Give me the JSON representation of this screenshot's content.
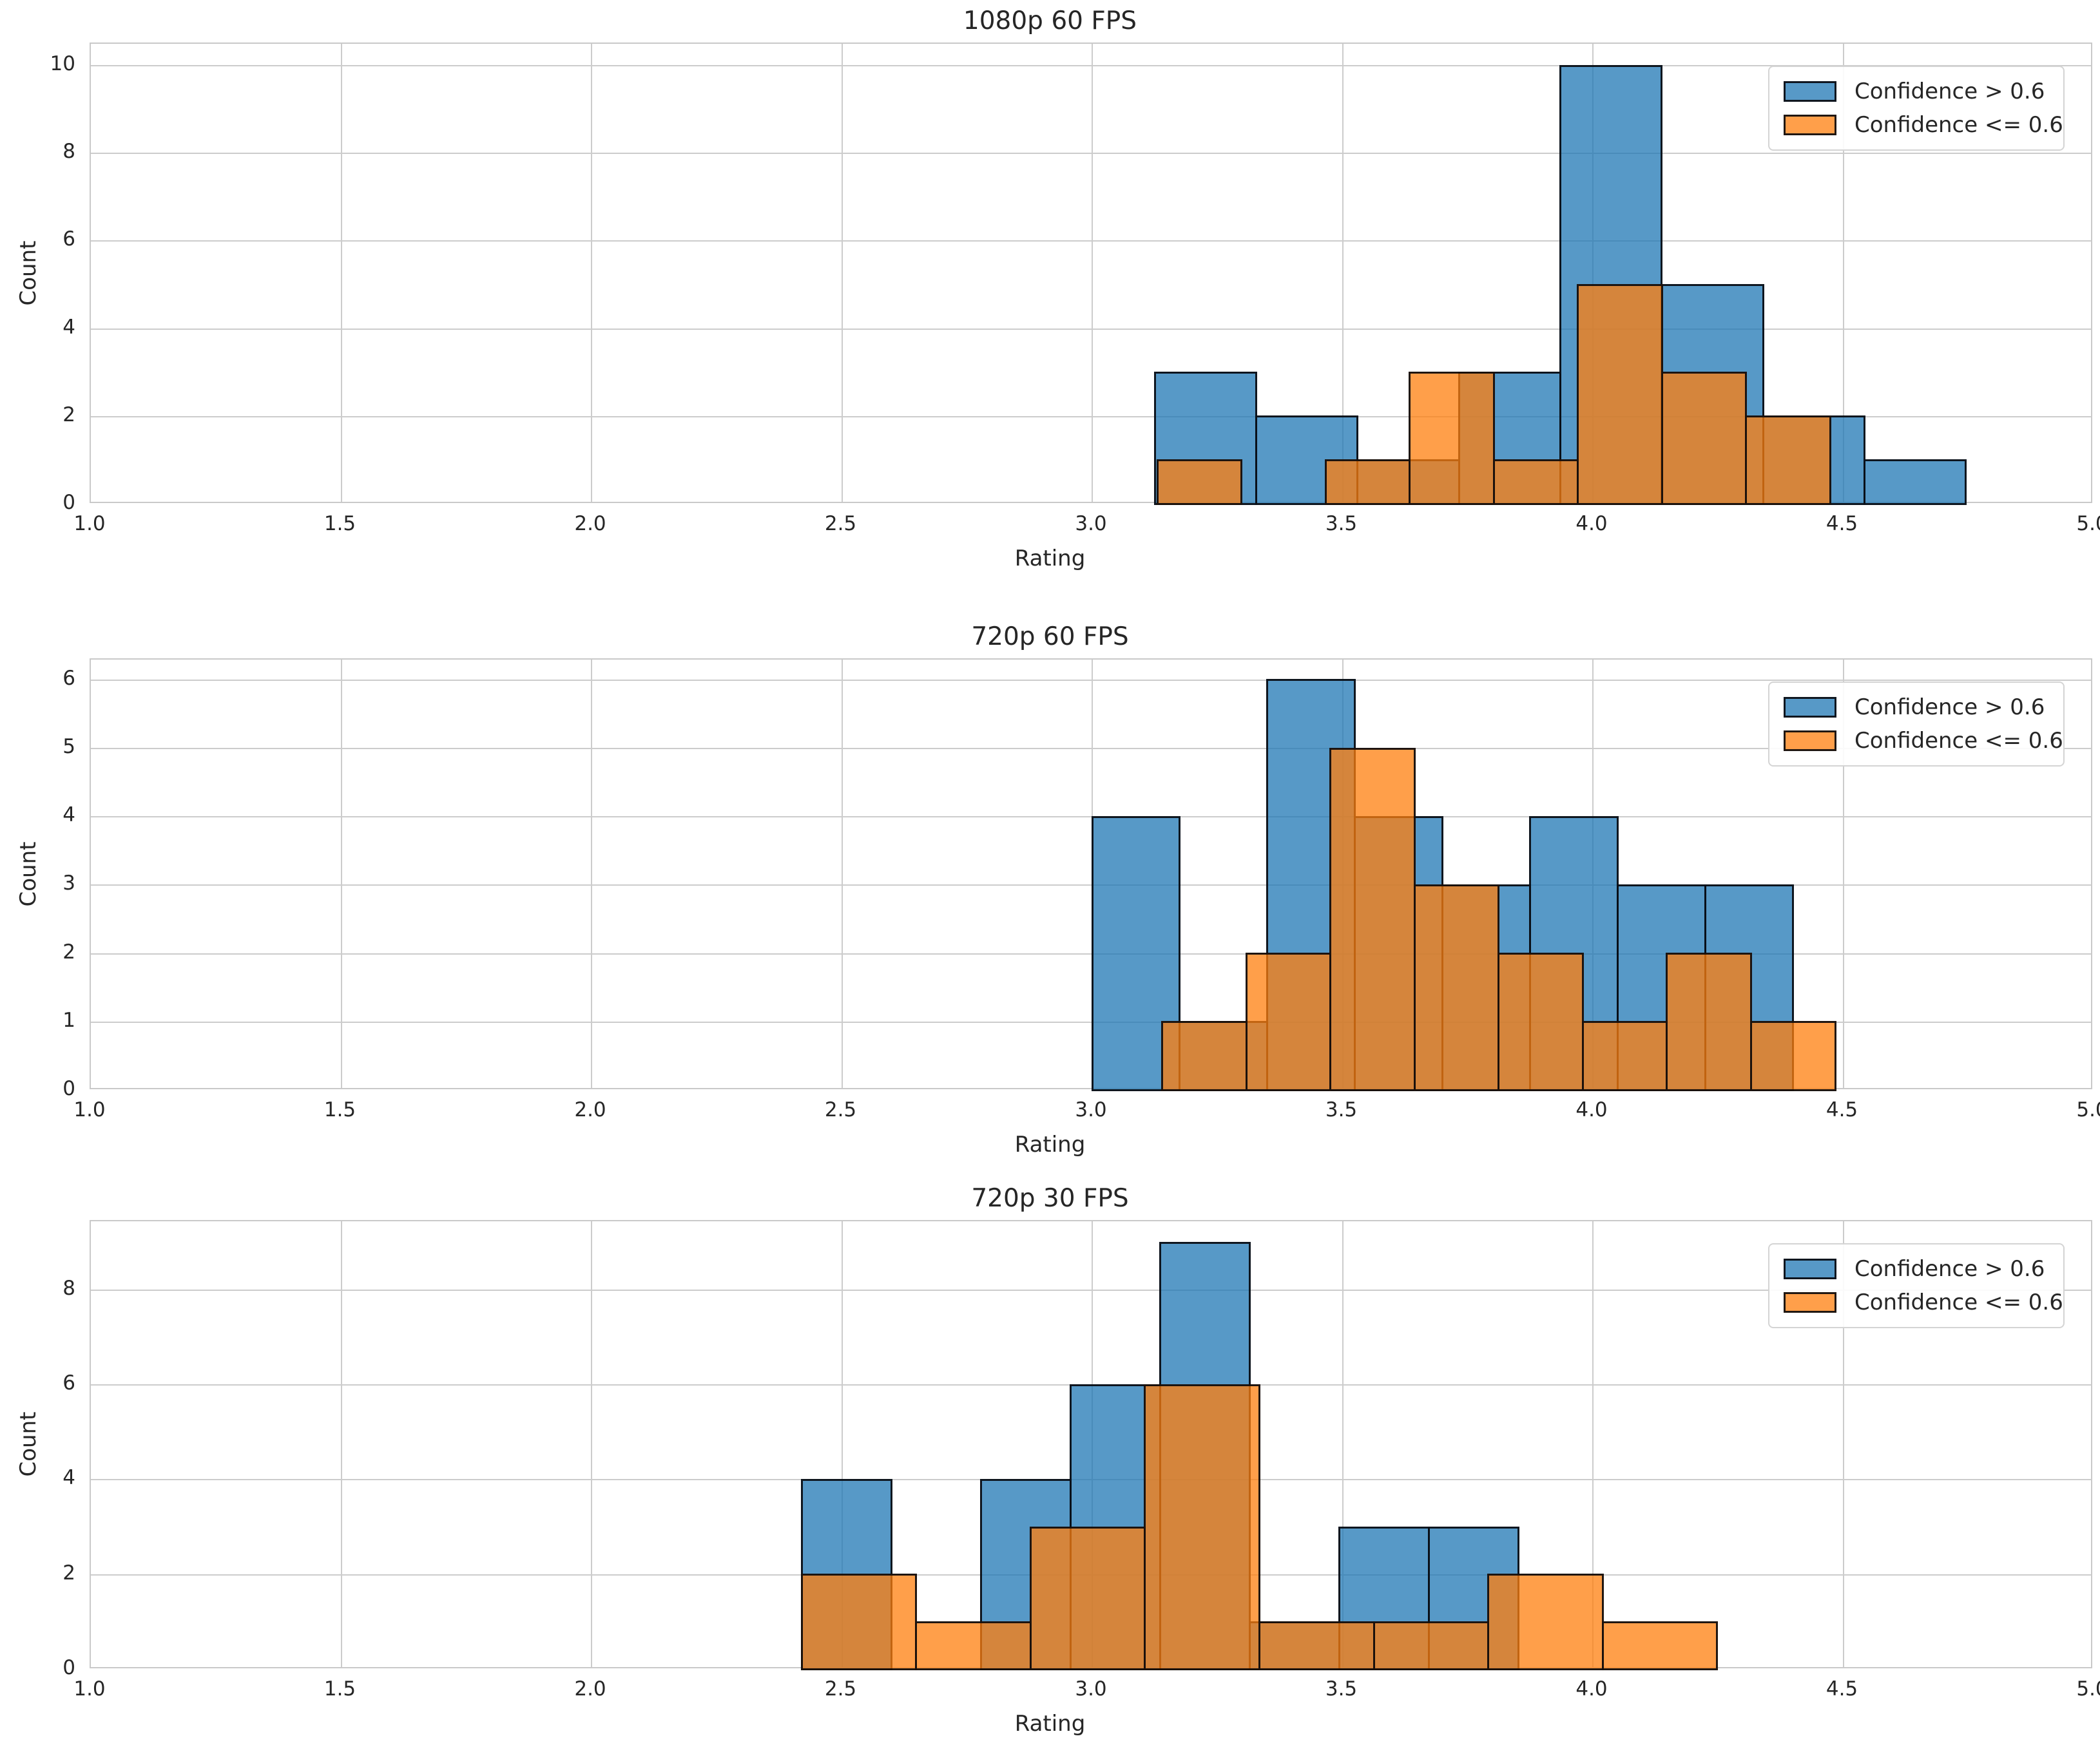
{
  "figure": {
    "background": "#ffffff",
    "text_color": "#262626",
    "grid_color": "#cccccc",
    "spine_color": "#c9c9c9",
    "bar_edge_color": "#08080c",
    "fill_alpha": 0.75
  },
  "legend": {
    "position": "upper right",
    "items": [
      {
        "label": "Confidence > 0.6",
        "color": "#1f77b4"
      },
      {
        "label": "Confidence <= 0.6",
        "color": "#ff7f0e"
      }
    ]
  },
  "chart_data": [
    {
      "type": "histogram",
      "title": "1080p 60 FPS",
      "xlabel": "Rating",
      "ylabel": "Count",
      "xlim": [
        1.0,
        5.0
      ],
      "xticks": [
        "1.0",
        "1.5",
        "2.0",
        "2.5",
        "3.0",
        "3.5",
        "4.0",
        "4.5",
        "5.0"
      ],
      "ylim": [
        0,
        10.5
      ],
      "yticks": [
        0,
        2,
        4,
        6,
        8,
        10
      ],
      "grid": true,
      "legend_position": "upper right",
      "series": [
        {
          "name": "Confidence > 0.6",
          "color": "#1f77b4",
          "bins": {
            "start": 3.125,
            "width": 0.2025
          },
          "counts": [
            3,
            2,
            1,
            3,
            10,
            5,
            2,
            1
          ]
        },
        {
          "name": "Confidence <= 0.6",
          "color": "#ff7f0e",
          "bins": {
            "start": 3.13,
            "width": 0.168
          },
          "counts": [
            1,
            0,
            1,
            3,
            1,
            5,
            3,
            2
          ]
        }
      ]
    },
    {
      "type": "histogram",
      "title": "720p 60 FPS",
      "xlabel": "Rating",
      "ylabel": "Count",
      "xlim": [
        1.0,
        5.0
      ],
      "xticks": [
        "1.0",
        "1.5",
        "2.0",
        "2.5",
        "3.0",
        "3.5",
        "4.0",
        "4.5",
        "5.0"
      ],
      "ylim": [
        0,
        6.3
      ],
      "yticks": [
        0,
        1,
        2,
        3,
        4,
        5,
        6
      ],
      "grid": true,
      "legend_position": "upper right",
      "series": [
        {
          "name": "Confidence > 0.6",
          "color": "#1f77b4",
          "bins": {
            "start": 3.0,
            "width": 0.175
          },
          "counts": [
            4,
            1,
            6,
            4,
            3,
            4,
            3,
            3
          ]
        },
        {
          "name": "Confidence <= 0.6",
          "color": "#ff7f0e",
          "bins": {
            "start": 3.14,
            "width": 0.168
          },
          "counts": [
            1,
            2,
            5,
            3,
            2,
            1,
            2,
            1
          ]
        }
      ]
    },
    {
      "type": "histogram",
      "title": "720p 30 FPS",
      "xlabel": "Rating",
      "ylabel": "Count",
      "xlim": [
        1.0,
        5.0
      ],
      "xticks": [
        "1.0",
        "1.5",
        "2.0",
        "2.5",
        "3.0",
        "3.5",
        "4.0",
        "4.5",
        "5.0"
      ],
      "ylim": [
        0,
        9.45
      ],
      "yticks": [
        0,
        2,
        4,
        6,
        8
      ],
      "grid": true,
      "legend_position": "upper right",
      "series": [
        {
          "name": "Confidence > 0.6",
          "color": "#1f77b4",
          "bins": {
            "start": 2.42,
            "width": 0.179
          },
          "counts": [
            4,
            0,
            4,
            6,
            9,
            1,
            3,
            3
          ]
        },
        {
          "name": "Confidence <= 0.6",
          "color": "#ff7f0e",
          "bins": {
            "start": 2.42,
            "width": 0.2285
          },
          "counts": [
            2,
            1,
            3,
            6,
            1,
            1,
            2,
            1
          ]
        }
      ]
    }
  ]
}
